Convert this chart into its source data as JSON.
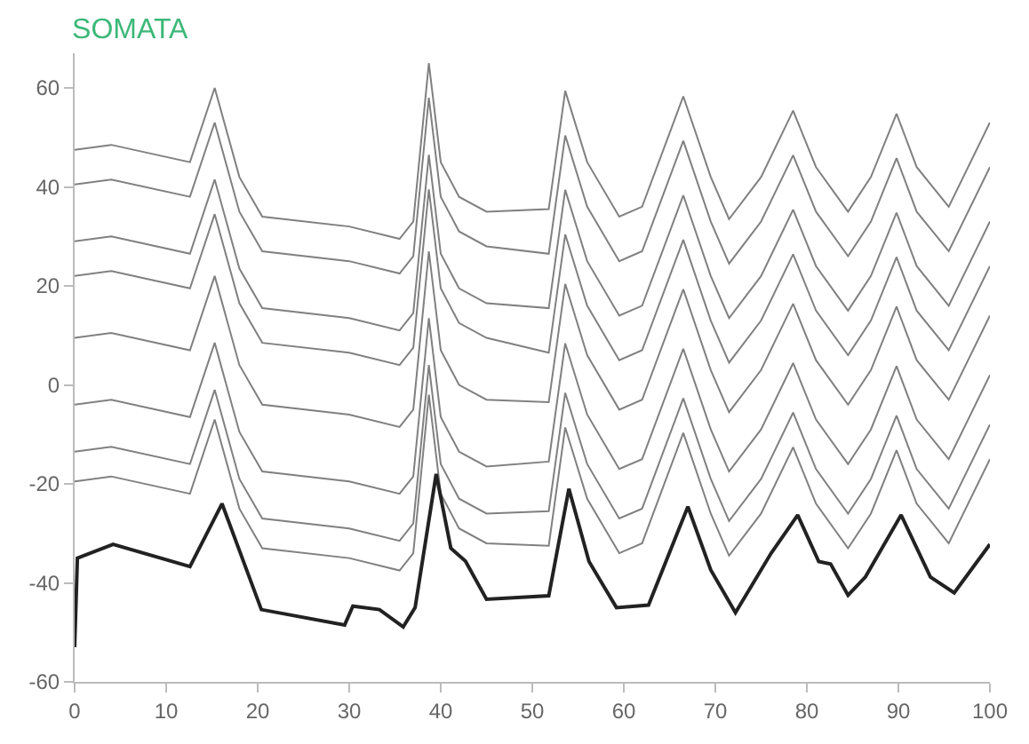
{
  "chart_data": {
    "type": "line",
    "title": "SOMATA",
    "x": [
      0,
      4,
      12.6,
      15.3,
      18,
      20.5,
      30,
      35.5,
      37,
      38.7,
      40,
      42,
      45,
      51.8,
      53.6,
      56,
      59.5,
      62,
      66.5,
      69.5,
      71.5,
      75,
      78.5,
      81,
      84.5,
      87,
      89.8,
      92,
      95.5,
      100
    ],
    "series": [
      {
        "color": "#808080",
        "values": [
          47.5,
          48.5,
          45,
          60,
          42,
          34,
          32,
          29.5,
          33,
          65,
          45,
          38,
          35,
          35.5,
          59.4,
          45,
          34,
          36,
          58.3,
          42,
          33.5,
          42,
          55.4,
          44,
          35,
          42,
          54.8,
          44,
          36,
          53
        ]
      },
      {
        "color": "#808080",
        "values": [
          40.5,
          41.5,
          38,
          53,
          35,
          27,
          25,
          22.5,
          26,
          58,
          38,
          31,
          28,
          26.5,
          50.4,
          36,
          25,
          27,
          49.3,
          33,
          24.5,
          33,
          46.4,
          35,
          26,
          33,
          45.8,
          35,
          27,
          44
        ]
      },
      {
        "color": "#808080",
        "values": [
          29,
          30,
          26.5,
          41.5,
          23.5,
          15.5,
          13.5,
          11,
          14.5,
          46.5,
          26.5,
          19.5,
          16.5,
          15.5,
          39.4,
          25,
          14,
          16,
          38.3,
          22,
          13.5,
          22,
          35.4,
          24,
          15,
          22,
          34.8,
          24,
          16,
          33
        ]
      },
      {
        "color": "#808080",
        "values": [
          22,
          23,
          19.5,
          34.5,
          16.5,
          8.5,
          6.5,
          4,
          7.5,
          39.5,
          19.5,
          12.5,
          9.5,
          6.5,
          30.4,
          16,
          5,
          7,
          29.3,
          13,
          4.5,
          13,
          26.4,
          15,
          6,
          13,
          25.8,
          15,
          7,
          24
        ]
      },
      {
        "color": "#808080",
        "values": [
          9.5,
          10.5,
          7,
          22,
          4,
          -4,
          -6,
          -8.5,
          -5,
          27,
          7,
          0,
          -3,
          -3.5,
          20.4,
          6,
          -5,
          -3,
          19.3,
          3,
          -5.5,
          3,
          16.4,
          5,
          -4,
          3,
          15.8,
          5,
          -3,
          14
        ]
      },
      {
        "color": "#808080",
        "values": [
          -4,
          -3,
          -6.5,
          8.5,
          -9.5,
          -17.5,
          -19.5,
          -22,
          -18.5,
          13.5,
          -6.5,
          -13.5,
          -16.5,
          -15.5,
          8.4,
          -6,
          -17,
          -15,
          7.3,
          -9,
          -17.5,
          -9,
          4.4,
          -7,
          -16,
          -9,
          3.8,
          -7,
          -15,
          2
        ]
      },
      {
        "color": "#808080",
        "values": [
          -13.5,
          -12.5,
          -16,
          -1,
          -19,
          -27,
          -29,
          -31.5,
          -28,
          4,
          -16,
          -23,
          -26,
          -25.5,
          -1.6,
          -16,
          -27,
          -25,
          -2.7,
          -19,
          -27.5,
          -19,
          -5.6,
          -17,
          -26,
          -19,
          -6.2,
          -17,
          -25,
          -8
        ]
      },
      {
        "color": "#808080",
        "values": [
          -19.5,
          -18.5,
          -22,
          -7,
          -25,
          -33,
          -35,
          -37.5,
          -34,
          -2,
          -22,
          -29,
          -32,
          -32.5,
          -8.6,
          -23,
          -34,
          -32,
          -9.7,
          -26,
          -34.5,
          -26,
          -12.6,
          -24,
          -33,
          -26,
          -13.2,
          -24,
          -32,
          -15
        ]
      },
      {
        "color": "#222222",
        "x": [
          0,
          0.3,
          4.2,
          12.6,
          16.1,
          20.4,
          29.5,
          30.4,
          33.3,
          35.9,
          37.2,
          39.5,
          41.1,
          42.7,
          45,
          51.8,
          54,
          56.2,
          59.2,
          62.7,
          67,
          69.5,
          72.2,
          76.1,
          79,
          81.3,
          82.6,
          84.5,
          86.4,
          90.3,
          93.5,
          96.1,
          100
        ],
        "values": [
          -53,
          -35,
          -32.2,
          -36.7,
          -24,
          -45.4,
          -48.5,
          -44.7,
          -45.4,
          -48.9,
          -45,
          -18,
          -33,
          -35.6,
          -43.3,
          -42.6,
          -21,
          -35.7,
          -45,
          -44.5,
          -24.6,
          -37.4,
          -46,
          -34,
          -26.3,
          -35.7,
          -36.2,
          -42.5,
          -38.8,
          -26.3,
          -38.8,
          -42,
          -32.2
        ]
      }
    ],
    "xlim": [
      0,
      100
    ],
    "xticks": [
      0,
      10,
      20,
      30,
      40,
      50,
      60,
      70,
      80,
      90,
      100
    ],
    "ylim": [
      -60,
      67
    ],
    "yticks": [
      -60,
      -40,
      -20,
      0,
      20,
      40,
      60
    ],
    "marker": "none",
    "line_style": "solid"
  }
}
